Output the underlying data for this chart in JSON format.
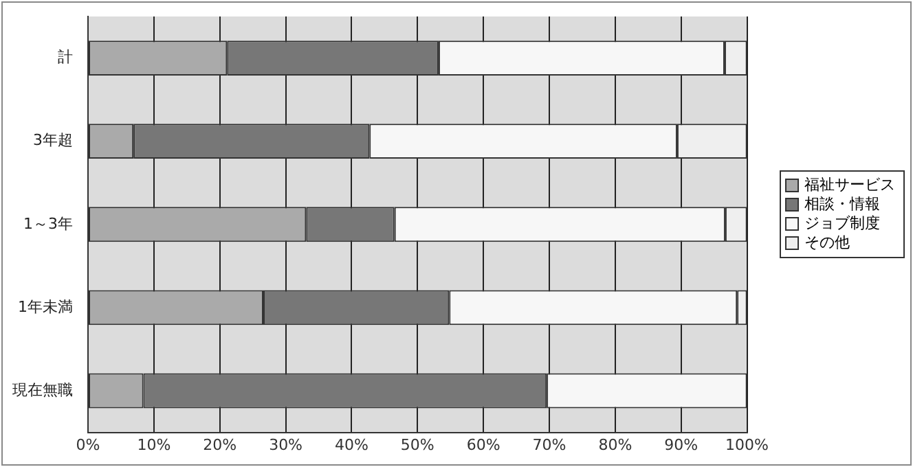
{
  "chart_data": {
    "type": "bar",
    "orientation": "horizontal",
    "stacked": true,
    "categories": [
      "計",
      "3年超",
      "1～3年",
      "1年未満",
      "現在無職"
    ],
    "series": [
      {
        "name": "福祉サービス",
        "color": "#aaaaaa",
        "values": [
          21.1,
          6.9,
          33.1,
          26.6,
          8.4
        ]
      },
      {
        "name": "相談・情報",
        "color": "#777777",
        "values": [
          32.1,
          35.8,
          13.4,
          28.2,
          61.2
        ]
      },
      {
        "name": "ジョブ制度",
        "color": "#f7f7f7",
        "values": [
          43.4,
          46.7,
          50.2,
          43.7,
          30.4
        ]
      },
      {
        "name": "その他",
        "color": "#efefef",
        "values": [
          3.4,
          10.6,
          3.3,
          1.5,
          0
        ]
      }
    ],
    "xlim": [
      0,
      100
    ],
    "xticks": [
      {
        "value": 0,
        "label": "0%"
      },
      {
        "value": 10,
        "label": "10%"
      },
      {
        "value": 20,
        "label": "20%"
      },
      {
        "value": 30,
        "label": "30%"
      },
      {
        "value": 40,
        "label": "40%"
      },
      {
        "value": 50,
        "label": "50%"
      },
      {
        "value": 60,
        "label": "60%"
      },
      {
        "value": 70,
        "label": "70%"
      },
      {
        "value": 80,
        "label": "80%"
      },
      {
        "value": 90,
        "label": "90%"
      },
      {
        "value": 100,
        "label": "100%"
      }
    ],
    "grid": "x",
    "legend": "right"
  }
}
